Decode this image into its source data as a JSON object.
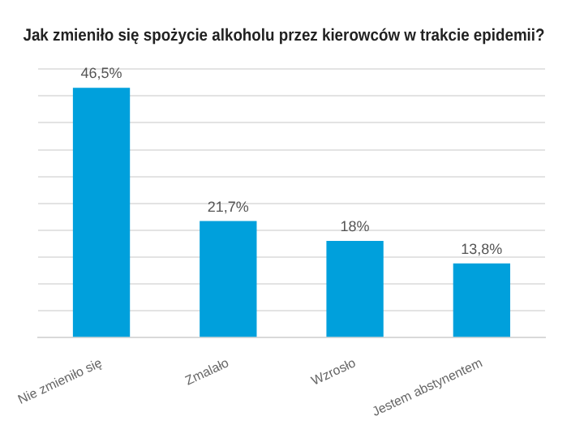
{
  "chart_data": {
    "type": "bar",
    "title": "Jak zmieniło się spożycie alkoholu przez kierowców w trakcie epidemii?",
    "categories": [
      "Nie zmieniło się",
      "Zmalało",
      "Wzrosło",
      "Jestem abstynentem"
    ],
    "values": [
      46.5,
      21.7,
      18,
      13.8
    ],
    "value_labels": [
      "46,5%",
      "21,7%",
      "18%",
      "13,8%"
    ],
    "color": "#00a0dc",
    "ylim": [
      0,
      50
    ],
    "yticks": [
      0,
      5,
      10,
      15,
      20,
      25,
      30,
      35,
      40,
      45,
      50
    ],
    "grid": "y",
    "tick_labels": "x"
  }
}
